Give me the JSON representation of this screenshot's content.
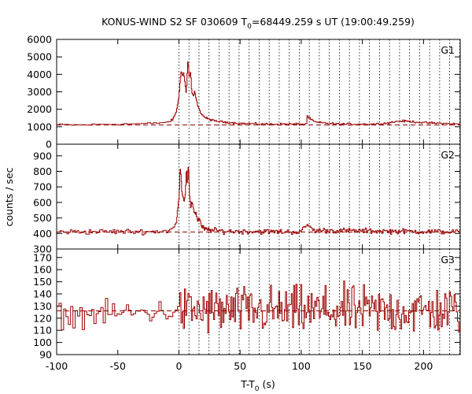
{
  "chart_data": {
    "type": "line",
    "title_main": "KONUS-WIND S2 SF 030609 T",
    "title_sub": "0",
    "title_rest": "=68449.259 s UT (19:00:49.259)",
    "xlabel_main": "T-T",
    "xlabel_sub": "0",
    "xlabel_rest": " (s)",
    "ylabel": "counts / sec",
    "xlim": [
      -100,
      230
    ],
    "xticks": [
      -100,
      -50,
      0,
      50,
      100,
      150,
      200
    ],
    "xtick_labels": [
      "-100",
      "-50",
      "0",
      "50",
      "100",
      "150",
      "200"
    ],
    "vlines": [
      0,
      8.2,
      16.4,
      24.6,
      32.8,
      41,
      49.2,
      57.4,
      65.6,
      73.8,
      82,
      90.2,
      98.4,
      106.6,
      114.8,
      123,
      131.2,
      139.4,
      147.6,
      155.8,
      164,
      172.2,
      180.4,
      188.6,
      196.8,
      205,
      213.2,
      221.4,
      229.6
    ],
    "panels": [
      {
        "name": "G1",
        "ylim": [
          0,
          6000
        ],
        "yticks": [
          0,
          1000,
          2000,
          3000,
          4000,
          5000,
          6000
        ],
        "ytick_labels": [
          "0",
          "1000",
          "2000",
          "3000",
          "4000",
          "5000",
          "6000"
        ],
        "background": 1100,
        "noise": 40,
        "points": [
          [
            -100,
            1120
          ],
          [
            -80,
            1100
          ],
          [
            -60,
            1140
          ],
          [
            -40,
            1160
          ],
          [
            -20,
            1190
          ],
          [
            -10,
            1260
          ],
          [
            -5,
            1400
          ],
          [
            -2,
            1900
          ],
          [
            0,
            2700
          ],
          [
            1,
            3700
          ],
          [
            2,
            4200
          ],
          [
            3,
            3900
          ],
          [
            4,
            4100
          ],
          [
            5,
            3500
          ],
          [
            6,
            2900
          ],
          [
            7,
            4300
          ],
          [
            7.5,
            4850
          ],
          [
            8.5,
            3700
          ],
          [
            9.5,
            4200
          ],
          [
            10.5,
            3000
          ],
          [
            12,
            2700
          ],
          [
            13,
            3050
          ],
          [
            14,
            2600
          ],
          [
            15,
            2300
          ],
          [
            17,
            1900
          ],
          [
            19,
            1700
          ],
          [
            21,
            1550
          ],
          [
            24,
            1450
          ],
          [
            28,
            1350
          ],
          [
            33,
            1300
          ],
          [
            40,
            1250
          ],
          [
            50,
            1190
          ],
          [
            70,
            1150
          ],
          [
            100,
            1150
          ],
          [
            104,
            1140
          ],
          [
            105,
            1600
          ],
          [
            108,
            1400
          ],
          [
            112,
            1250
          ],
          [
            130,
            1150
          ],
          [
            160,
            1150
          ],
          [
            170,
            1200
          ],
          [
            180,
            1330
          ],
          [
            190,
            1300
          ],
          [
            200,
            1230
          ],
          [
            210,
            1200
          ],
          [
            230,
            1150
          ]
        ]
      },
      {
        "name": "G2",
        "ylim": [
          300,
          975
        ],
        "yticks": [
          300,
          400,
          500,
          600,
          700,
          800,
          900
        ],
        "ytick_labels": [
          "300",
          "400",
          "500",
          "600",
          "700",
          "800",
          "900"
        ],
        "background": 410,
        "noise": 12,
        "points": [
          [
            -100,
            410
          ],
          [
            -50,
            412
          ],
          [
            -20,
            412
          ],
          [
            -8,
            418
          ],
          [
            -4,
            440
          ],
          [
            -2,
            470
          ],
          [
            -1,
            560
          ],
          [
            0,
            610
          ],
          [
            1,
            850
          ],
          [
            1.6,
            780
          ],
          [
            2.4,
            680
          ],
          [
            3.4,
            640
          ],
          [
            4.4,
            600
          ],
          [
            5.4,
            680
          ],
          [
            6.2,
            840
          ],
          [
            7,
            700
          ],
          [
            7.8,
            860
          ],
          [
            8.6,
            660
          ],
          [
            9.6,
            560
          ],
          [
            11,
            600
          ],
          [
            12.5,
            540
          ],
          [
            14,
            530
          ],
          [
            15.5,
            480
          ],
          [
            17,
            500
          ],
          [
            18,
            460
          ],
          [
            19,
            440
          ],
          [
            22,
            425
          ],
          [
            30,
            418
          ],
          [
            40,
            414
          ],
          [
            100,
            410
          ],
          [
            105,
            460
          ],
          [
            110,
            420
          ],
          [
            230,
            410
          ]
        ]
      },
      {
        "name": "G3",
        "ylim": [
          90,
          177
        ],
        "yticks": [
          90,
          100,
          110,
          120,
          130,
          140,
          150,
          160,
          170
        ],
        "ytick_labels": [
          "90",
          "100",
          "110",
          "120",
          "130",
          "140",
          "150",
          "160",
          "170"
        ],
        "background": 126,
        "noise": 12,
        "points": [
          [
            -100,
            122
          ],
          [
            -50,
            124
          ],
          [
            0,
            126
          ],
          [
            230,
            126
          ]
        ]
      }
    ]
  }
}
